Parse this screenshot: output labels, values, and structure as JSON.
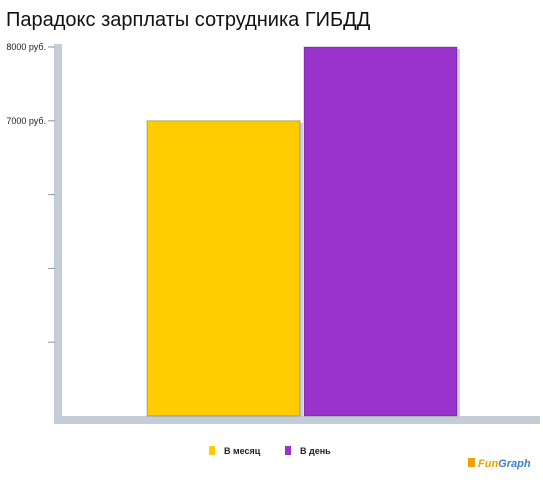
{
  "chart_data": {
    "type": "bar",
    "title": "Парадокс зарплаты сотрудника ГИБДД",
    "categories": [
      "В месяц",
      "В день"
    ],
    "values": [
      7000,
      8000
    ],
    "series_colors": [
      "#ffcc00",
      "#9933cc"
    ],
    "ytick_labels": [
      {
        "value": 7000,
        "label": "7000 руб."
      },
      {
        "value": 8000,
        "label": "8000 руб."
      }
    ],
    "ylim": [
      3000,
      8000
    ],
    "grid": false,
    "legend": {
      "position": "bottom-center",
      "entries": [
        {
          "label": "В месяц",
          "color": "#ffcc00"
        },
        {
          "label": "В день",
          "color": "#9933cc"
        }
      ]
    }
  },
  "watermark": {
    "brand_part1": "Fun",
    "brand_part2": "Graph"
  }
}
